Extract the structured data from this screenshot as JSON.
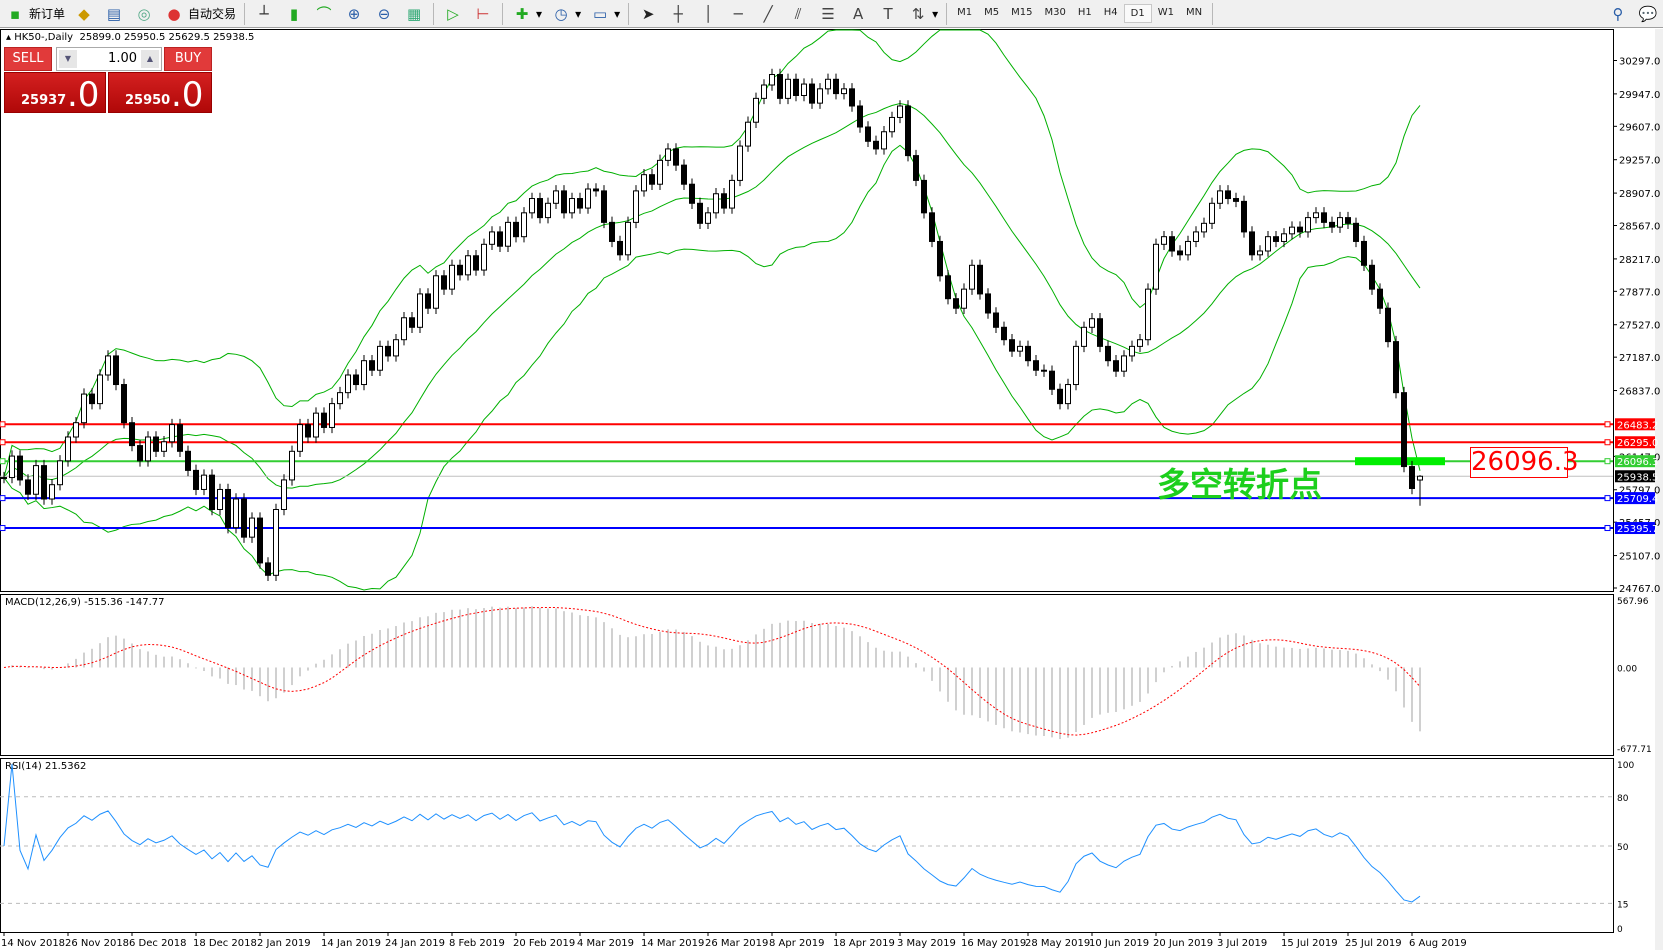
{
  "toolbar": {
    "new_order": "新订单",
    "auto_trade": "自动交易",
    "icons": [
      "market-watch-icon",
      "data-window-icon",
      "navigator-icon",
      "bar-chart-icon",
      "candlestick-icon",
      "line-chart-icon",
      "zoom-in-icon",
      "zoom-out-icon",
      "tile-windows-icon",
      "autoscroll-icon",
      "chart-shift-icon",
      "indicators-icon",
      "periods-icon",
      "templates-icon",
      "cursor-icon",
      "crosshair-icon",
      "vertical-line-icon",
      "horizontal-line-icon",
      "trendline-icon",
      "equidistant-channel-icon",
      "fibonacci-icon",
      "text-icon",
      "text-label-icon",
      "arrows-icon"
    ],
    "timeframes": [
      "M1",
      "M5",
      "M15",
      "M30",
      "H1",
      "H4",
      "D1",
      "W1",
      "MN"
    ],
    "active_timeframe": "D1"
  },
  "chart": {
    "title": "HK50-,Daily",
    "ohlc": "25899.0 25950.5 25629.5 25938.5"
  },
  "trade_panel": {
    "sell": "SELL",
    "buy": "BUY",
    "lots": "1.00",
    "sell_main": "25937",
    "sell_frac": ".0",
    "buy_main": "25950",
    "buy_frac": ".0"
  },
  "annotation": {
    "text": "多空转折点",
    "price_label": "26096.3"
  },
  "macd": {
    "label": "MACD(12,26,9) -515.36 -147.77",
    "axis": [
      "567.96",
      "0.00",
      "-677.71"
    ],
    "range": [
      -677.71,
      567.96
    ],
    "colors": {
      "histogram": "#c0c0c0",
      "signal": "#ff0000"
    }
  },
  "rsi": {
    "label": "RSI(14) 21.5362",
    "axis": [
      "100",
      "80",
      "50",
      "15",
      "0"
    ],
    "levels": [
      80,
      50,
      15
    ],
    "color": "#1e90ff"
  },
  "chart_data": {
    "type": "candlestick",
    "ylim": [
      24767,
      30297
    ],
    "price_ticks": [
      "30297.0",
      "29947.0",
      "29607.0",
      "29257.0",
      "28907.0",
      "28567.0",
      "28217.0",
      "27877.0",
      "27527.0",
      "27187.0",
      "26837.0",
      "26147.0",
      "25797.0",
      "25457.0",
      "25107.0",
      "24767.0"
    ],
    "dates": [
      "14 Nov 2018",
      "26 Nov 2018",
      "6 Dec 2018",
      "18 Dec 2018",
      "2 Jan 2019",
      "14 Jan 2019",
      "24 Jan 2019",
      "8 Feb 2019",
      "20 Feb 2019",
      "4 Mar 2019",
      "14 Mar 2019",
      "26 Mar 2019",
      "8 Apr 2019",
      "18 Apr 2019",
      "3 May 2019",
      "16 May 2019",
      "28 May 2019",
      "10 Jun 2019",
      "20 Jun 2019",
      "3 Jul 2019",
      "15 Jul 2019",
      "25 Jul 2019",
      "6 Aug 2019"
    ],
    "last_bar": {
      "open": 25899.0,
      "high": 25950.5,
      "low": 25629.5,
      "close": 25938.5
    },
    "close": [
      25925,
      26150,
      25900,
      25750,
      26050,
      25700,
      25850,
      26100,
      26350,
      26500,
      26800,
      26700,
      27000,
      27200,
      26900,
      26500,
      26260,
      26100,
      26350,
      26200,
      26300,
      26480,
      26200,
      26000,
      25800,
      25950,
      25590,
      25800,
      25400,
      25700,
      25300,
      25500,
      25030,
      24900,
      25590,
      25900,
      26200,
      26480,
      26350,
      26600,
      26450,
      26700,
      26815,
      27000,
      26900,
      27150,
      27050,
      27300,
      27200,
      27370,
      27600,
      27500,
      27850,
      27700,
      28040,
      27900,
      28150,
      28050,
      28250,
      28100,
      28370,
      28500,
      28350,
      28600,
      28450,
      28700,
      28850,
      28650,
      28800,
      28930,
      28700,
      28850,
      28750,
      28950,
      28930,
      28600,
      28400,
      28260,
      28600,
      28930,
      29100,
      29000,
      29250,
      29370,
      29200,
      29000,
      28800,
      28590,
      28700,
      28900,
      28750,
      29040,
      29400,
      29650,
      29900,
      30040,
      30150,
      29900,
      30100,
      29930,
      30050,
      29850,
      30000,
      30100,
      29950,
      30000,
      29820,
      29600,
      29450,
      29370,
      29550,
      29700,
      29820,
      29300,
      29040,
      28700,
      28400,
      28040,
      27800,
      27700,
      27900,
      28150,
      27850,
      27650,
      27500,
      27370,
      27250,
      27300,
      27150,
      27050,
      27040,
      26850,
      26700,
      26900,
      27300,
      27500,
      27590,
      27300,
      27150,
      27040,
      27200,
      27300,
      27370,
      27900,
      28370,
      28450,
      28300,
      28260,
      28400,
      28500,
      28590,
      28800,
      28930,
      28850,
      28820,
      28500,
      28260,
      28300,
      28450,
      28400,
      28480,
      28550,
      28500,
      28650,
      28700,
      28600,
      28550,
      28650,
      28590,
      28400,
      28150,
      27900,
      27700,
      27350,
      26815,
      26040,
      25810,
      25938.5
    ],
    "indicators": {
      "bollinger": {
        "period": 20,
        "deviation": 2,
        "color": "#00b000"
      }
    },
    "hlines": [
      {
        "price": 26483.2,
        "label": "26483.2",
        "color": "#ff0000"
      },
      {
        "price": 26295.0,
        "label": "26295.0",
        "color": "#ff0000"
      },
      {
        "price": 26096.3,
        "label": "26096.3",
        "color": "#32cd32"
      },
      {
        "price": 25938.5,
        "label": "25938.5",
        "color": "#000000",
        "bid": true
      },
      {
        "price": 25709.4,
        "label": "25709.4",
        "color": "#0000ff"
      },
      {
        "price": 25395.7,
        "label": "25395.7",
        "color": "#0000ff"
      }
    ]
  }
}
